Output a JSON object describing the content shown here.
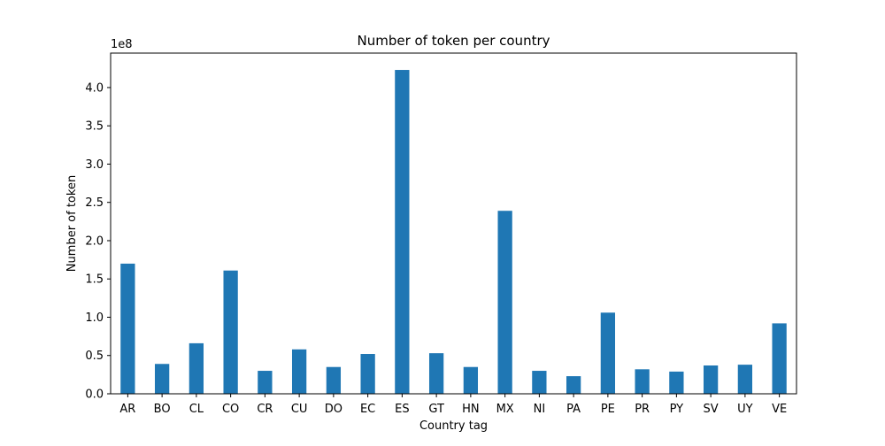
{
  "chart_data": {
    "type": "bar",
    "title": "Number of token per country",
    "xlabel": "Country tag",
    "ylabel": "Number of token",
    "y_multiplier_label": "1e8",
    "ylim": [
      0,
      4.45
    ],
    "yticks": [
      "0.0",
      "0.5",
      "1.0",
      "1.5",
      "2.0",
      "2.5",
      "3.0",
      "3.5",
      "4.0"
    ],
    "categories": [
      "AR",
      "BO",
      "CL",
      "CO",
      "CR",
      "CU",
      "DO",
      "EC",
      "ES",
      "GT",
      "HN",
      "MX",
      "NI",
      "PA",
      "PE",
      "PR",
      "PY",
      "SV",
      "UY",
      "VE"
    ],
    "values": [
      1.7,
      0.39,
      0.66,
      1.61,
      0.3,
      0.58,
      0.35,
      0.52,
      4.23,
      0.53,
      0.35,
      2.39,
      0.3,
      0.23,
      1.06,
      0.32,
      0.29,
      0.37,
      0.38,
      0.92
    ],
    "bar_color": "#1f77b4",
    "grid": false,
    "legend": "none"
  }
}
